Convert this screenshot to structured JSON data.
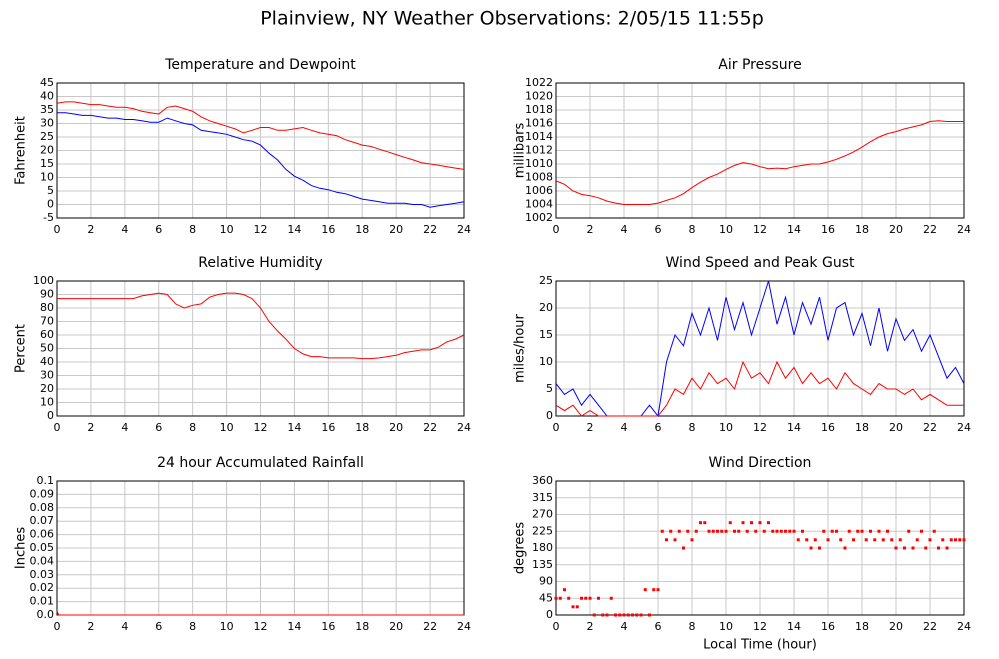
{
  "title": "Plainview, NY Weather Observations: 2/05/15 11:55p",
  "chart_data": [
    {
      "type": "line",
      "title": "Temperature and Dewpoint",
      "ylabel": "Fahrenheit",
      "x": [
        0,
        0.5,
        1,
        1.5,
        2,
        2.5,
        3,
        3.5,
        4,
        4.5,
        5,
        5.5,
        6,
        6.5,
        7,
        7.5,
        8,
        8.5,
        9,
        9.5,
        10,
        10.5,
        11,
        11.5,
        12,
        12.5,
        13,
        13.5,
        14,
        14.5,
        15,
        15.5,
        16,
        16.5,
        17,
        17.5,
        18,
        18.5,
        19,
        19.5,
        20,
        20.5,
        21,
        21.5,
        22,
        22.5,
        23,
        23.5,
        24
      ],
      "series": [
        {
          "color": "#ff0000",
          "values": [
            37.5,
            38,
            38,
            37.5,
            37,
            37,
            36.5,
            36,
            36,
            35.5,
            34.5,
            34,
            33.5,
            36,
            36.5,
            35.5,
            34.5,
            32.5,
            31,
            30,
            29,
            28,
            26.5,
            27.5,
            28.5,
            28.5,
            27.5,
            27.5,
            28,
            28.5,
            27.5,
            26.5,
            26,
            25.5,
            24,
            23,
            22,
            21.5,
            20.5,
            19.5,
            18.5,
            17.5,
            16.5,
            15.5,
            15,
            14.5,
            14,
            13.5,
            13
          ]
        },
        {
          "color": "#0000ff",
          "values": [
            34,
            34,
            33.5,
            33,
            33,
            32.5,
            32,
            32,
            31.5,
            31.5,
            31,
            30.5,
            30.5,
            32,
            31,
            30,
            29.5,
            27.5,
            27,
            26.5,
            26,
            25,
            24,
            23.5,
            22,
            19,
            16.5,
            13,
            10.5,
            9,
            7,
            6,
            5.5,
            4.5,
            4,
            3,
            2,
            1.5,
            1,
            0.5,
            0.5,
            0.5,
            0,
            0,
            -1,
            -0.5,
            0,
            0.5,
            1
          ]
        }
      ],
      "xlim": [
        0,
        24
      ],
      "xticks": [
        0,
        2,
        4,
        6,
        8,
        10,
        12,
        14,
        16,
        18,
        20,
        22,
        24
      ],
      "ylim": [
        -5,
        45
      ],
      "yticks": [
        -5,
        0,
        5,
        10,
        15,
        20,
        25,
        30,
        35,
        40,
        45
      ]
    },
    {
      "type": "line",
      "title": "Air Pressure",
      "ylabel": "millibars",
      "x": [
        0,
        0.5,
        1,
        1.5,
        2,
        2.5,
        3,
        3.5,
        4,
        4.5,
        5,
        5.5,
        6,
        6.5,
        7,
        7.5,
        8,
        8.5,
        9,
        9.5,
        10,
        10.5,
        11,
        11.5,
        12,
        12.5,
        13,
        13.5,
        14,
        14.5,
        15,
        15.5,
        16,
        16.5,
        17,
        17.5,
        18,
        18.5,
        19,
        19.5,
        20,
        20.5,
        21,
        21.5,
        22,
        22.5,
        23,
        23.5,
        24
      ],
      "series": [
        {
          "color": "#ff0000",
          "values": [
            1007.5,
            1007,
            1006,
            1005.5,
            1005.3,
            1005,
            1004.5,
            1004.2,
            1004,
            1004,
            1004,
            1004,
            1004.2,
            1004.6,
            1005,
            1005.6,
            1006.5,
            1007.3,
            1008,
            1008.5,
            1009.2,
            1009.8,
            1010.2,
            1010,
            1009.6,
            1009.3,
            1009.4,
            1009.3,
            1009.6,
            1009.8,
            1010,
            1010,
            1010.3,
            1010.7,
            1011.2,
            1011.8,
            1012.5,
            1013.3,
            1014,
            1014.5,
            1014.8,
            1015.2,
            1015.5,
            1015.8,
            1016.3,
            1016.4,
            1016.3,
            1016.3,
            1016.3
          ]
        }
      ],
      "xlim": [
        0,
        24
      ],
      "xticks": [
        0,
        2,
        4,
        6,
        8,
        10,
        12,
        14,
        16,
        18,
        20,
        22,
        24
      ],
      "ylim": [
        1002,
        1022
      ],
      "yticks": [
        1002,
        1004,
        1006,
        1008,
        1010,
        1012,
        1014,
        1016,
        1018,
        1020,
        1022
      ]
    },
    {
      "type": "line",
      "title": "Relative Humidity",
      "ylabel": "Percent",
      "x": [
        0,
        0.5,
        1,
        1.5,
        2,
        2.5,
        3,
        3.5,
        4,
        4.5,
        5,
        5.5,
        6,
        6.5,
        7,
        7.5,
        8,
        8.5,
        9,
        9.5,
        10,
        10.5,
        11,
        11.5,
        12,
        12.5,
        13,
        13.5,
        14,
        14.5,
        15,
        15.5,
        16,
        16.5,
        17,
        17.5,
        18,
        18.5,
        19,
        19.5,
        20,
        20.5,
        21,
        21.5,
        22,
        22.5,
        23,
        23.5,
        24
      ],
      "series": [
        {
          "color": "#ff0000",
          "values": [
            87,
            87,
            87,
            87,
            87,
            87,
            87,
            87,
            87,
            87,
            89,
            90,
            91,
            90,
            83,
            80,
            82,
            83,
            88,
            90,
            91,
            91,
            90,
            87,
            80,
            70,
            63,
            57,
            50,
            46,
            44,
            44,
            43,
            43,
            43,
            43,
            42.5,
            42.5,
            43,
            44,
            45,
            47,
            48,
            49,
            49,
            51,
            55,
            57,
            60
          ]
        }
      ],
      "xlim": [
        0,
        24
      ],
      "xticks": [
        0,
        2,
        4,
        6,
        8,
        10,
        12,
        14,
        16,
        18,
        20,
        22,
        24
      ],
      "ylim": [
        0,
        100
      ],
      "yticks": [
        0,
        10,
        20,
        30,
        40,
        50,
        60,
        70,
        80,
        90,
        100
      ]
    },
    {
      "type": "line",
      "title": "Wind Speed and Peak Gust",
      "ylabel": "miles/hour",
      "x": [
        0,
        0.5,
        1,
        1.5,
        2,
        2.5,
        3,
        3.5,
        4,
        4.5,
        5,
        5.5,
        6,
        6.5,
        7,
        7.5,
        8,
        8.5,
        9,
        9.5,
        10,
        10.5,
        11,
        11.5,
        12,
        12.5,
        13,
        13.5,
        14,
        14.5,
        15,
        15.5,
        16,
        16.5,
        17,
        17.5,
        18,
        18.5,
        19,
        19.5,
        20,
        20.5,
        21,
        21.5,
        22,
        22.5,
        23,
        23.5,
        24
      ],
      "series": [
        {
          "color": "#0000ff",
          "values": [
            6,
            4,
            5,
            2,
            4,
            2,
            0,
            0,
            0,
            0,
            0,
            2,
            0,
            10,
            15,
            13,
            19,
            15,
            20,
            14,
            22,
            16,
            21,
            15,
            20,
            25,
            17,
            22,
            15,
            21,
            17,
            22,
            14,
            20,
            21,
            15,
            19,
            13,
            20,
            12,
            18,
            14,
            16,
            12,
            15,
            11,
            7,
            9,
            6
          ]
        },
        {
          "color": "#ff0000",
          "values": [
            2,
            1,
            2,
            0,
            1,
            0,
            0,
            0,
            0,
            0,
            0,
            0,
            0,
            2,
            5,
            4,
            7,
            5,
            8,
            6,
            7,
            5,
            10,
            7,
            8,
            6,
            10,
            7,
            9,
            6,
            8,
            6,
            7,
            5,
            8,
            6,
            5,
            4,
            6,
            5,
            5,
            4,
            5,
            3,
            4,
            3,
            2,
            2,
            2
          ]
        }
      ],
      "xlim": [
        0,
        24
      ],
      "xticks": [
        0,
        2,
        4,
        6,
        8,
        10,
        12,
        14,
        16,
        18,
        20,
        22,
        24
      ],
      "ylim": [
        0,
        25
      ],
      "yticks": [
        0,
        5,
        10,
        15,
        20,
        25
      ]
    },
    {
      "type": "line",
      "title": "24 hour Accumulated Rainfall",
      "ylabel": "Inches",
      "x": [
        0,
        0.1,
        24
      ],
      "series": [
        {
          "color": "#ff0000",
          "values": [
            0.003,
            0,
            0
          ]
        }
      ],
      "xlim": [
        0,
        24
      ],
      "xticks": [
        0,
        2,
        4,
        6,
        8,
        10,
        12,
        14,
        16,
        18,
        20,
        22,
        24
      ],
      "ylim": [
        0,
        0.1
      ],
      "yticks": [
        {
          "value": 0,
          "label": "0.0"
        },
        0.01,
        0.02,
        0.03,
        0.04,
        0.05,
        0.06,
        0.07,
        0.08,
        0.09,
        0.1
      ]
    },
    {
      "type": "scatter",
      "title": "Wind Direction",
      "ylabel": "degrees",
      "xlabel": "Local Time (hour)",
      "x": [
        0,
        0.25,
        0.5,
        0.75,
        1,
        1.25,
        1.5,
        1.75,
        2,
        2.25,
        2.5,
        2.75,
        3,
        3.25,
        3.5,
        3.75,
        4,
        4.25,
        4.5,
        4.75,
        5,
        5.25,
        5.5,
        5.75,
        6,
        6.25,
        6.5,
        6.75,
        7,
        7.25,
        7.5,
        7.75,
        8,
        8.25,
        8.5,
        8.75,
        9,
        9.25,
        9.5,
        9.75,
        10,
        10.25,
        10.5,
        10.75,
        11,
        11.25,
        11.5,
        11.75,
        12,
        12.25,
        12.5,
        12.75,
        13,
        13.25,
        13.5,
        13.75,
        14,
        14.25,
        14.5,
        14.75,
        15,
        15.25,
        15.5,
        15.75,
        16,
        16.25,
        16.5,
        16.75,
        17,
        17.25,
        17.5,
        17.75,
        18,
        18.25,
        18.5,
        18.75,
        19,
        19.25,
        19.5,
        19.75,
        20,
        20.25,
        20.5,
        20.75,
        21,
        21.25,
        21.5,
        21.75,
        22,
        22.25,
        22.5,
        22.75,
        23,
        23.25,
        23.5,
        23.75,
        24
      ],
      "series": [
        {
          "color": "#ff0000",
          "values": [
            45,
            45,
            68,
            45,
            22,
            22,
            45,
            45,
            45,
            0,
            45,
            0,
            0,
            45,
            0,
            0,
            0,
            0,
            0,
            0,
            0,
            68,
            0,
            68,
            68,
            225,
            202,
            225,
            202,
            225,
            180,
            225,
            202,
            225,
            248,
            248,
            225,
            225,
            225,
            225,
            225,
            248,
            225,
            225,
            248,
            225,
            248,
            225,
            248,
            225,
            248,
            225,
            225,
            225,
            225,
            225,
            225,
            202,
            225,
            202,
            180,
            202,
            180,
            225,
            202,
            225,
            225,
            202,
            180,
            225,
            202,
            225,
            225,
            202,
            225,
            202,
            225,
            202,
            225,
            202,
            180,
            202,
            180,
            225,
            180,
            202,
            225,
            180,
            202,
            225,
            180,
            202,
            180,
            202,
            202,
            202,
            202
          ]
        }
      ],
      "xlim": [
        0,
        24
      ],
      "xticks": [
        0,
        2,
        4,
        6,
        8,
        10,
        12,
        14,
        16,
        18,
        20,
        22,
        24
      ],
      "ylim": [
        0,
        360
      ],
      "yticks": [
        0,
        45,
        90,
        135,
        180,
        225,
        270,
        315,
        360
      ]
    }
  ]
}
